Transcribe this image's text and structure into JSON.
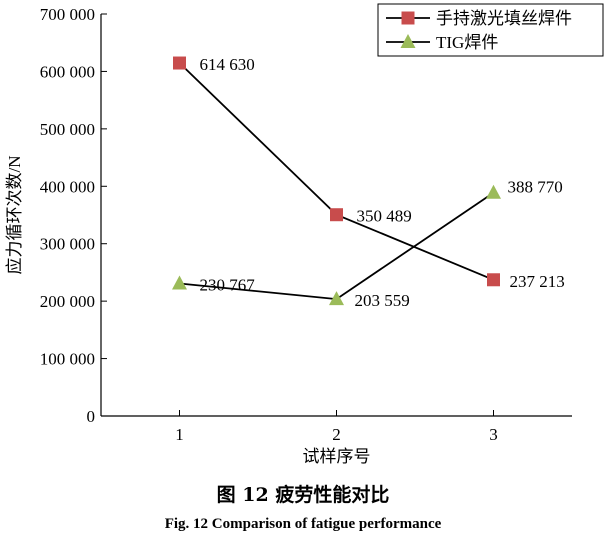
{
  "chart_data": {
    "type": "line",
    "x": [
      1,
      2,
      3
    ],
    "xlabel": "试样序号",
    "ylabel": "应力循环次数/N",
    "xlim": [
      0.5,
      3.5
    ],
    "ylim": [
      0,
      700000
    ],
    "yticks": [
      0,
      100000,
      200000,
      300000,
      400000,
      500000,
      600000,
      700000
    ],
    "ytick_labels": [
      "0",
      "100 000",
      "200 000",
      "300 000",
      "400 000",
      "500 000",
      "600 000",
      "700 000"
    ],
    "xticks": [
      1,
      2,
      3
    ],
    "xtick_labels": [
      "1",
      "2",
      "3"
    ],
    "grid": false,
    "legend_position": "top-right",
    "series": [
      {
        "name": "手持激光填丝焊件",
        "marker": "square",
        "color": "#c84c4c",
        "values": [
          614630,
          350489,
          237213
        ],
        "labels": [
          "614 630",
          "350 489",
          "237 213"
        ]
      },
      {
        "name": "TIG焊件",
        "marker": "triangle",
        "color": "#9bbb59",
        "values": [
          230767,
          203559,
          388770
        ],
        "labels": [
          "230 767",
          "203 559",
          "388 770"
        ]
      }
    ]
  },
  "caption": {
    "cn": "图 12    疲劳性能对比",
    "en": "Fig. 12    Comparison of fatigue performance"
  }
}
